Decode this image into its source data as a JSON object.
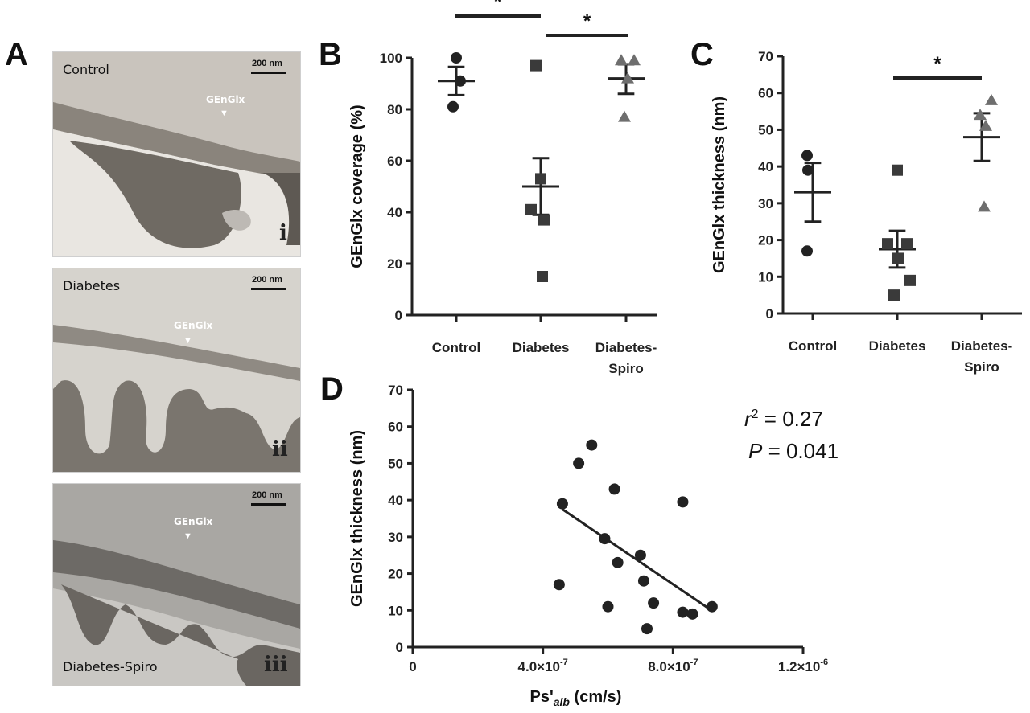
{
  "panels": {
    "a": "A",
    "b": "B",
    "c": "C",
    "d": "D"
  },
  "micrographs": [
    {
      "label": "Control",
      "tag": "GEnGlx",
      "roman": "i",
      "scale": "200 nm",
      "bg": "#c9c4bd"
    },
    {
      "label": "Diabetes",
      "tag": "GEnGlx",
      "roman": "ii",
      "scale": "200 nm",
      "bg": "#d6d3cd"
    },
    {
      "label": "Diabetes-Spiro",
      "tag": "GEnGlx",
      "roman": "iii",
      "scale": "200 nm",
      "bg": "#a9a7a3"
    }
  ],
  "colors": {
    "ink": "#222222",
    "marker": "#222222",
    "triangle": "#6e6e6e",
    "square": "#3a3a3a"
  },
  "chart_data": [
    {
      "type": "scatter",
      "panel": "B",
      "ylabel": "GEnGlx coverage (%)",
      "xlabel": "",
      "categories": [
        "Control",
        "Diabetes",
        "Diabetes-\nSpiro"
      ],
      "ylim": [
        0,
        100
      ],
      "yticks": [
        0,
        20,
        40,
        60,
        80,
        100
      ],
      "groups": [
        {
          "marker": "circle",
          "points": [
            100,
            91,
            81
          ],
          "mean": 91,
          "sem": [
            85.5,
            96.5
          ]
        },
        {
          "marker": "square",
          "points": [
            97,
            53,
            41,
            37,
            15
          ],
          "mean": 50,
          "sem": [
            39,
            61
          ]
        },
        {
          "marker": "triangle",
          "points": [
            99,
            99,
            92,
            77
          ],
          "mean": 92,
          "sem": [
            86,
            97.5
          ]
        }
      ],
      "significance": [
        {
          "from": 0,
          "to": 1,
          "label": "*"
        },
        {
          "from": 1,
          "to": 2,
          "label": "*"
        }
      ]
    },
    {
      "type": "scatter",
      "panel": "C",
      "ylabel": "GEnGlx thickness (nm)",
      "xlabel": "",
      "categories": [
        "Control",
        "Diabetes",
        "Diabetes-\nSpiro"
      ],
      "ylim": [
        0,
        70
      ],
      "yticks": [
        0,
        10,
        20,
        30,
        40,
        50,
        60,
        70
      ],
      "groups": [
        {
          "marker": "circle",
          "points": [
            43,
            39,
            17
          ],
          "mean": 33,
          "sem": [
            25,
            41
          ]
        },
        {
          "marker": "square",
          "points": [
            39,
            19,
            19,
            15,
            9,
            5
          ],
          "mean": 17.5,
          "sem": [
            12.5,
            22.5
          ]
        },
        {
          "marker": "triangle",
          "points": [
            58,
            54,
            51,
            29
          ],
          "mean": 48,
          "sem": [
            41.5,
            54.5
          ]
        }
      ],
      "significance": [
        {
          "from": 1,
          "to": 2,
          "label": "*"
        }
      ]
    },
    {
      "type": "scatter",
      "panel": "D",
      "ylabel": "GEnGlx thickness (nm)",
      "xlabel": "Ps'alb (cm/s)",
      "xlim": [
        0,
        1.2e-06
      ],
      "ylim": [
        0,
        70
      ],
      "xticks": [
        0,
        4e-07,
        8e-07,
        1.2e-06
      ],
      "xtick_labels": [
        "0",
        "4.0×10-7",
        "8.0×10-7",
        "1.2×10-6"
      ],
      "yticks": [
        0,
        10,
        20,
        30,
        40,
        50,
        60,
        70
      ],
      "points": [
        {
          "x": 5.5e-07,
          "y": 55
        },
        {
          "x": 5.1e-07,
          "y": 50
        },
        {
          "x": 6.2e-07,
          "y": 43
        },
        {
          "x": 4.6e-07,
          "y": 39
        },
        {
          "x": 8.3e-07,
          "y": 39.5
        },
        {
          "x": 5.9e-07,
          "y": 29.5
        },
        {
          "x": 7e-07,
          "y": 25
        },
        {
          "x": 6.3e-07,
          "y": 23
        },
        {
          "x": 7.1e-07,
          "y": 18
        },
        {
          "x": 4.5e-07,
          "y": 17
        },
        {
          "x": 7.4e-07,
          "y": 12
        },
        {
          "x": 6e-07,
          "y": 11
        },
        {
          "x": 9.2e-07,
          "y": 11
        },
        {
          "x": 8.3e-07,
          "y": 9.5
        },
        {
          "x": 8.6e-07,
          "y": 9
        },
        {
          "x": 7.2e-07,
          "y": 5
        }
      ],
      "fit": {
        "x": [
          4.6e-07,
          9.1e-07
        ],
        "y": [
          37.5,
          10.5
        ]
      },
      "annotations": {
        "r2_var": "r",
        "r2_sup": "2",
        "r2_val": " = 0.27",
        "p_var": "P",
        "p_val": " = 0.041"
      }
    }
  ]
}
